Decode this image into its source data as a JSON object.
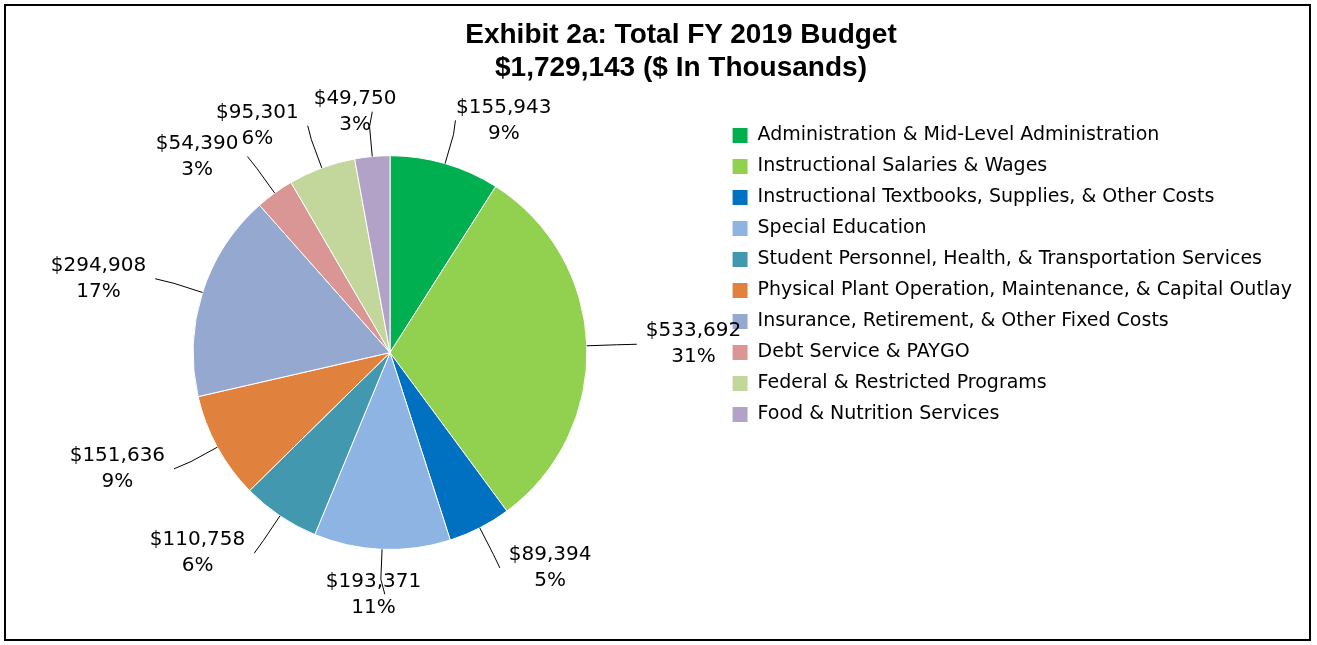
{
  "chart_data": {
    "type": "pie",
    "title": "Exhibit 2a: Total FY 2019 Budget\n$1,729,143 ($ In Thousands)",
    "categories": [
      "Administration & Mid-Level Administration",
      "Instructional Salaries & Wages",
      "Instructional Textbooks, Supplies, & Other Costs",
      "Special Education",
      "Student Personnel, Health, & Transportation Services",
      "Physical Plant Operation, Maintenance, & Capital Outlay",
      "Insurance, Retirement, & Other Fixed Costs",
      "Debt Service & PAYGO",
      "Federal & Restricted Programs",
      "Food & Nutrition Services"
    ],
    "values": [
      155943,
      533692,
      89394,
      193371,
      110758,
      151636,
      294908,
      54390,
      95301,
      49750
    ],
    "value_labels": [
      "$155,943\n9%",
      "$533,692\n31%",
      "$89,394\n5%",
      "$193,371\n11%",
      "$110,758\n6%",
      "$151,636\n9%",
      "$294,908\n17%",
      "$54,390\n3%",
      "$95,301\n6%",
      "$49,750\n3%"
    ],
    "colors": [
      "#00b050",
      "#92d050",
      "#0070c0",
      "#8db4e2",
      "#4198af",
      "#e0823d",
      "#95a9d0",
      "#d99694",
      "#c3d69b",
      "#b3a2c7"
    ],
    "legend": "right"
  }
}
